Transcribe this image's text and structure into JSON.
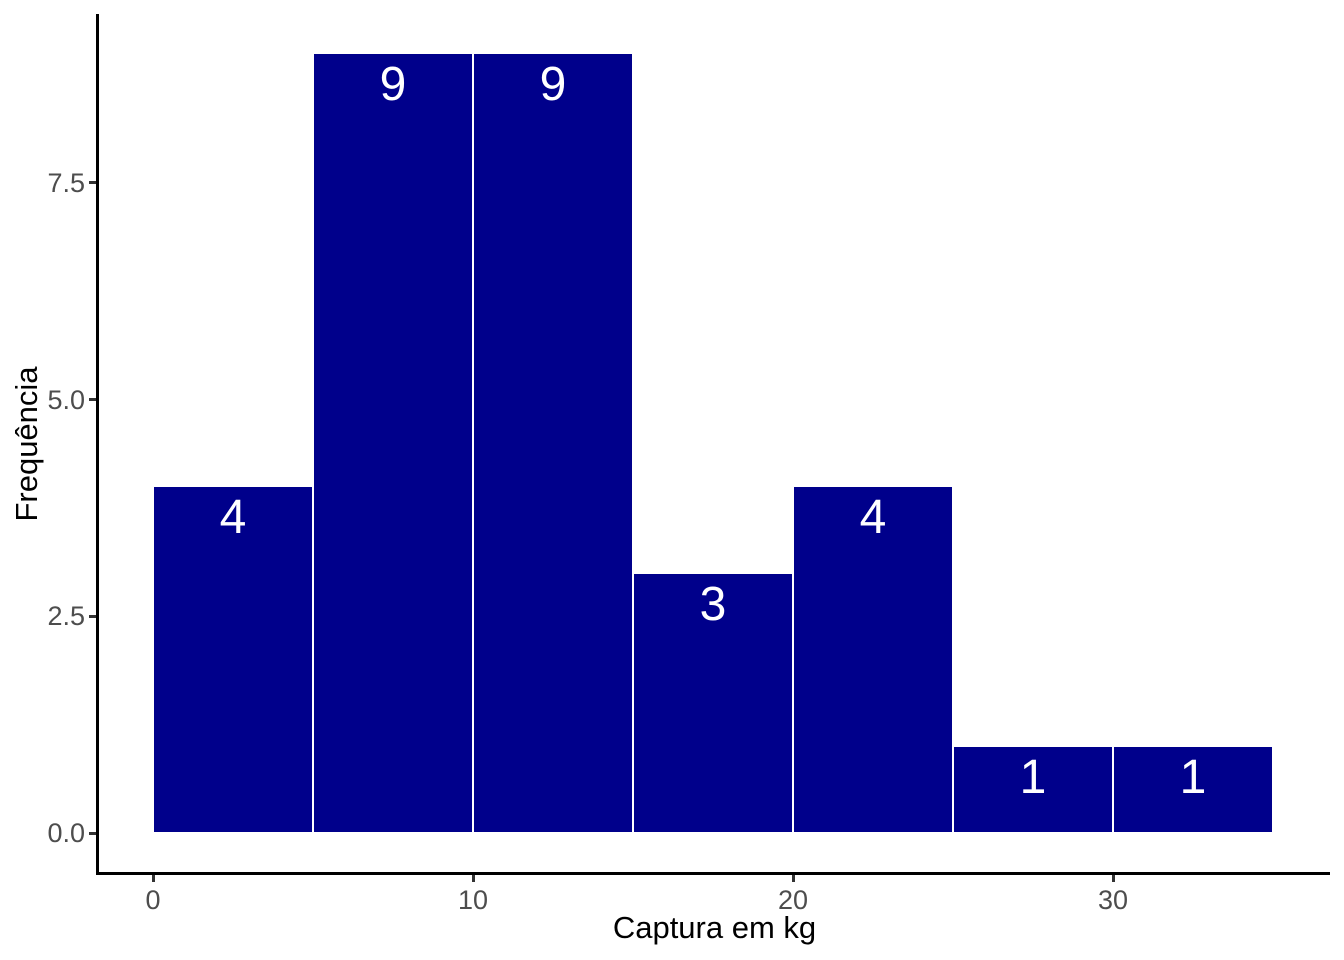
{
  "figure": {
    "background_color": "#ffffff",
    "panel_background_color": "#ffffff",
    "axis_line_color": "#000000",
    "tick_mark_color": "#333333",
    "tick_label_color": "#4d4d4d",
    "title_color": "#000000"
  },
  "chart_data": {
    "type": "bar",
    "subtype": "histogram",
    "title": "",
    "xlabel": "Captura em kg",
    "ylabel": "Frequência",
    "bin_edges": [
      0,
      5,
      10,
      15,
      20,
      25,
      30,
      35
    ],
    "counts": [
      4,
      9,
      9,
      3,
      4,
      1,
      1
    ],
    "bar_labels": [
      "4",
      "9",
      "9",
      "3",
      "4",
      "1",
      "1"
    ],
    "bar_fill": "#00008B",
    "bar_border": "#ffffff",
    "bar_label_color": "#ffffff",
    "x_ticks": [
      0,
      10,
      20,
      30
    ],
    "x_tick_labels": [
      "0",
      "10",
      "20",
      "30"
    ],
    "y_ticks": [
      0,
      2.5,
      5,
      7.5
    ],
    "y_tick_labels": [
      "0.0",
      "2.5",
      "5.0",
      "7.5"
    ],
    "xlim": [
      -1.75,
      36.75
    ],
    "ylim": [
      0,
      9.45
    ],
    "grid": false,
    "legend": false
  }
}
